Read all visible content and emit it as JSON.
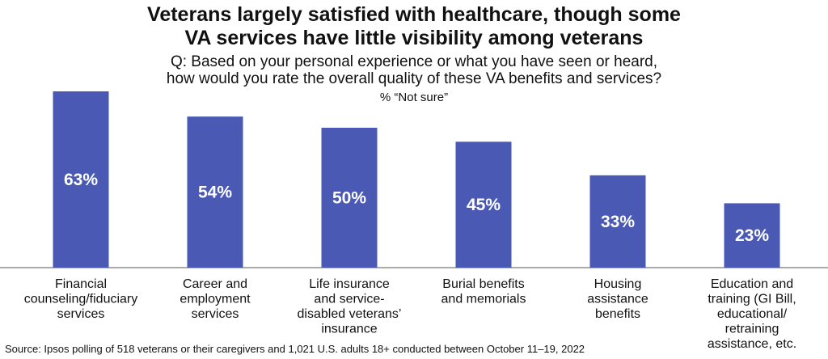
{
  "title_lines": [
    "Veterans largely satisfied with healthcare, though some",
    "VA services have little visibility among veterans"
  ],
  "subtitle_lines": [
    "Q: Based on your personal experience or what you have seen or heard,",
    "how would you rate the overall quality of these VA benefits and services?"
  ],
  "measure_label": "% “Not sure”",
  "source": "Source: Ipsos polling of 518 veterans or their caregivers and 1,021 U.S. adults 18+ conducted between October 11–19, 2022",
  "colors": {
    "bar": "#4a5ab4",
    "bar_label": "#ffffff",
    "axis": "#555555"
  },
  "chart_data": {
    "type": "bar",
    "title": "Veterans largely satisfied with healthcare, though some VA services have little visibility among veterans",
    "ylabel": "% “Not sure”",
    "ylim": [
      0,
      63
    ],
    "grid": false,
    "categories": [
      [
        "Financial",
        "counseling/fiduciary",
        "services"
      ],
      [
        "Career and",
        "employment",
        "services"
      ],
      [
        "Life insurance",
        "and service-",
        "disabled veterans’",
        "insurance"
      ],
      [
        "Burial benefits",
        "and memorials"
      ],
      [
        "Housing",
        "assistance",
        "benefits"
      ],
      [
        "Education and",
        "training (GI Bill,",
        "educational/",
        "retraining",
        "assistance, etc."
      ]
    ],
    "values": [
      63,
      54,
      50,
      45,
      33,
      23
    ],
    "value_labels": [
      "63%",
      "54%",
      "50%",
      "45%",
      "33%",
      "23%"
    ]
  }
}
